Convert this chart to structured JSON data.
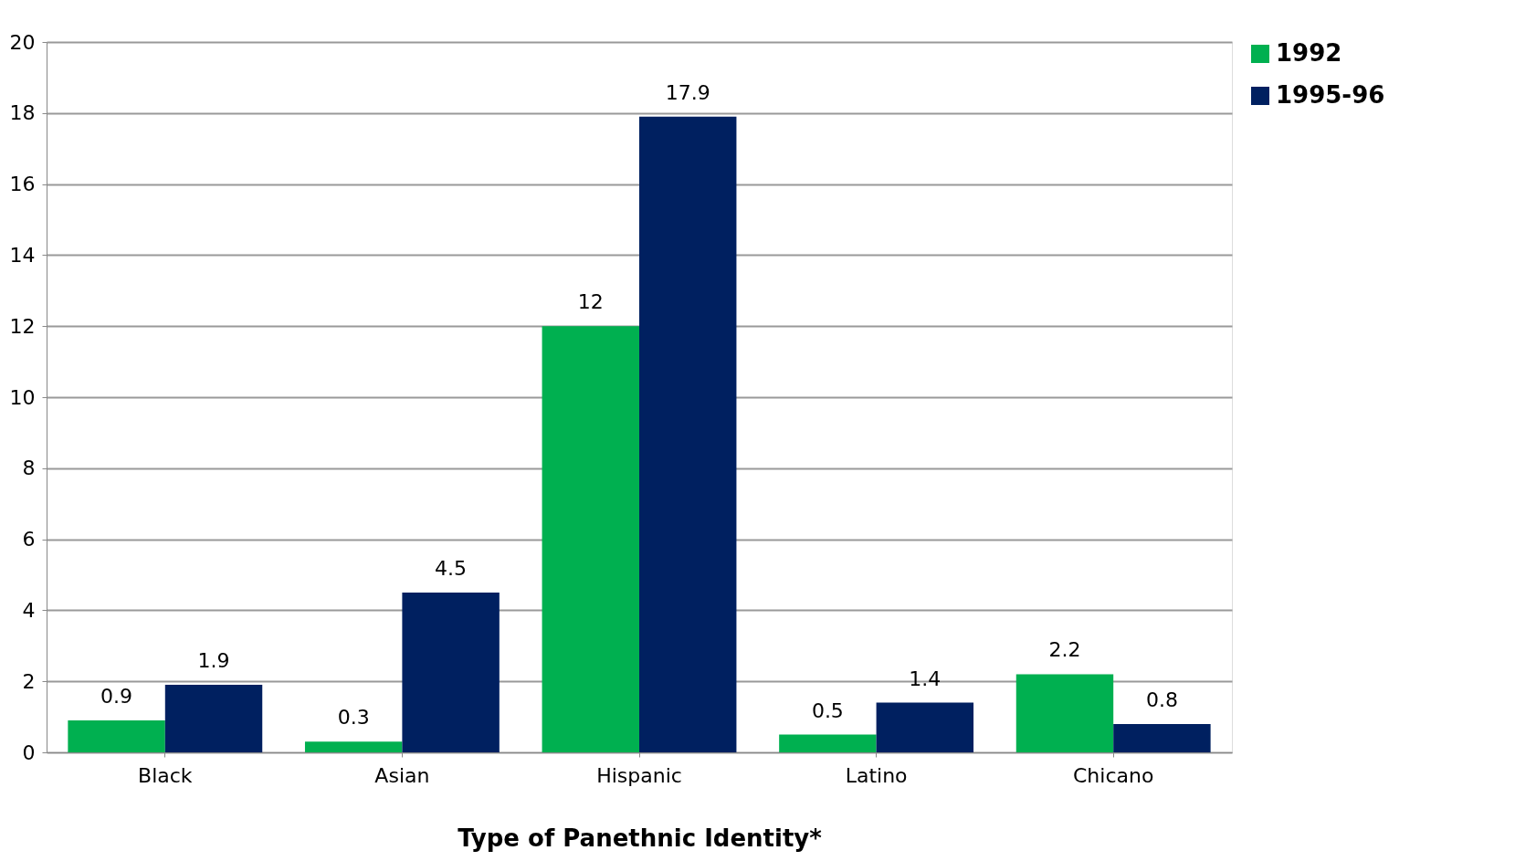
{
  "chart_data": {
    "type": "bar",
    "xlabel": "Type of Panethnic Identity*",
    "categories": [
      "Black",
      "Asian",
      "Hispanic",
      "Latino",
      "Chicano"
    ],
    "series": [
      {
        "name": "1992",
        "color": "#00b050",
        "values": [
          0.9,
          0.3,
          12,
          0.5,
          2.2
        ]
      },
      {
        "name": "1995-96",
        "color": "#002060",
        "values": [
          1.9,
          4.5,
          17.9,
          1.4,
          0.8
        ]
      }
    ],
    "ylim": [
      0,
      20
    ],
    "yticks": [
      0,
      2,
      4,
      6,
      8,
      10,
      12,
      14,
      16,
      18,
      20
    ],
    "grid": "y",
    "legend": "right",
    "data_labels": true
  }
}
